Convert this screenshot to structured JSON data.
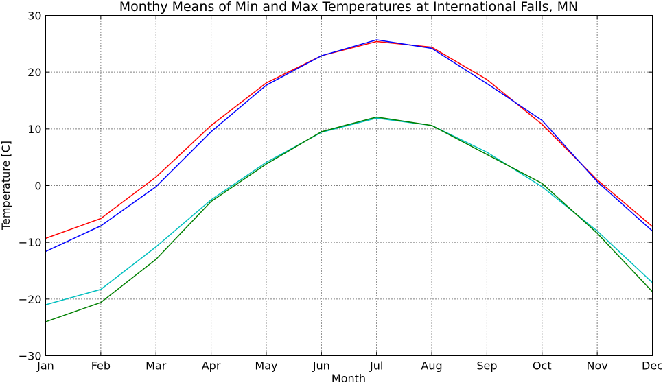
{
  "chart_data": {
    "type": "line",
    "title": "Monthy Means of Min and Max Temperatures at International Falls, MN",
    "xlabel": "Month",
    "ylabel": "Temperature [C]",
    "categories": [
      "Jan",
      "Feb",
      "Mar",
      "Apr",
      "May",
      "Jun",
      "Jul",
      "Aug",
      "Sep",
      "Oct",
      "Nov",
      "Dec"
    ],
    "ylim": [
      -30,
      30
    ],
    "yticks": [
      -30,
      -20,
      -10,
      0,
      10,
      20,
      30
    ],
    "ytick_labels": [
      "−30",
      "−20",
      "−10",
      "0",
      "10",
      "20",
      "30"
    ],
    "grid": true,
    "series": [
      {
        "color": "#ff0000",
        "values": [
          -9.3,
          -5.8,
          1.5,
          10.6,
          18.1,
          22.9,
          25.4,
          24.4,
          18.7,
          10.8,
          1.0,
          -7.2
        ]
      },
      {
        "color": "#0000ff",
        "values": [
          -11.6,
          -7.1,
          -0.2,
          9.5,
          17.7,
          22.9,
          25.7,
          24.2,
          18.0,
          11.5,
          0.7,
          -8.0
        ]
      },
      {
        "color": "#00bfbf",
        "values": [
          -21.0,
          -18.3,
          -10.8,
          -2.5,
          4.1,
          9.4,
          11.9,
          10.6,
          5.9,
          -0.2,
          -8.0,
          -17.1
        ]
      },
      {
        "color": "#008000",
        "values": [
          -24.0,
          -20.6,
          -13.0,
          -2.8,
          3.8,
          9.5,
          12.1,
          10.6,
          5.5,
          0.4,
          -8.4,
          -18.7
        ]
      }
    ]
  }
}
